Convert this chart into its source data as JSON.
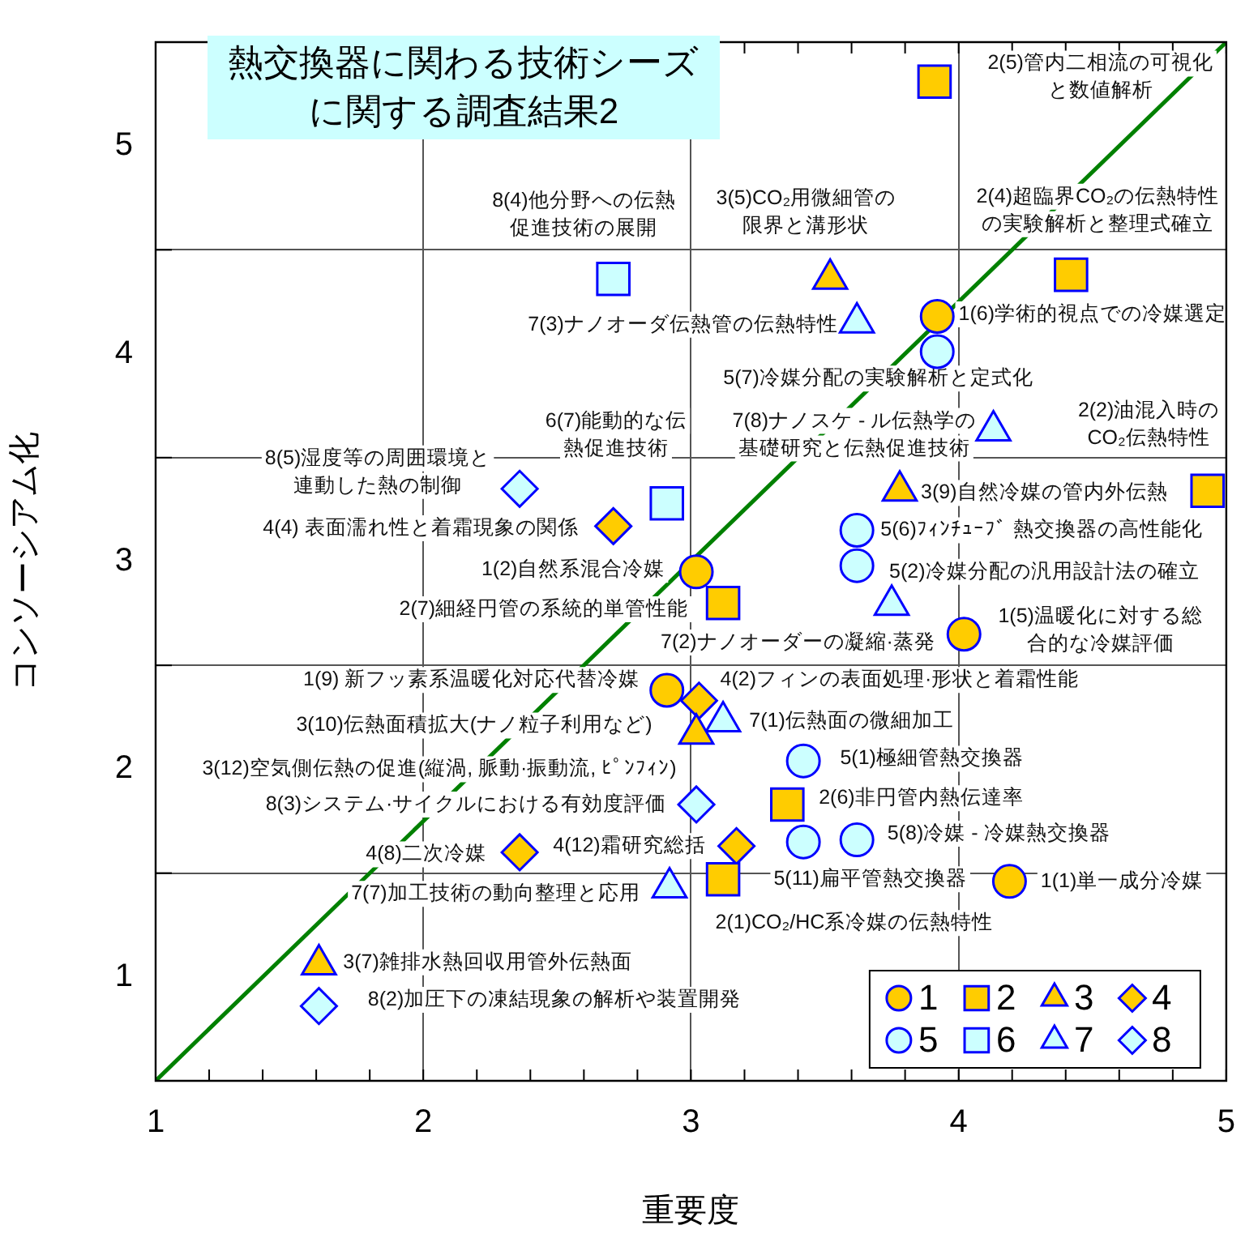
{
  "chart_data": {
    "type": "scatter",
    "title": "熱交換器に関わる技術シーズに関する調査結果2",
    "xlabel": "重要度",
    "ylabel": "コンソーシアム化",
    "xlim": [
      1,
      5
    ],
    "ylim": [
      0.5,
      5.5
    ],
    "xticks": [
      1,
      {
        "value": 1.2,
        "label": null
      },
      {
        "value": 1.4,
        "label": null
      },
      {
        "value": 1.6,
        "label": null
      },
      {
        "value": 1.8,
        "label": null
      },
      2,
      {
        "value": 2.2,
        "label": null
      },
      {
        "value": 2.4,
        "label": null
      },
      {
        "value": 2.6,
        "label": null
      },
      {
        "value": 2.8,
        "label": null
      },
      3,
      {
        "value": 3.2,
        "label": null
      },
      {
        "value": 3.4,
        "label": null
      },
      {
        "value": 3.6,
        "label": null
      },
      {
        "value": 3.8,
        "label": null
      },
      4,
      {
        "value": 4.2,
        "label": null
      },
      {
        "value": 4.4,
        "label": null
      },
      {
        "value": 4.6,
        "label": null
      },
      {
        "value": 4.8,
        "label": null
      },
      5
    ],
    "yticks": [
      1,
      {
        "value": 1.5,
        "label": null
      },
      2,
      {
        "value": 2.5,
        "label": null
      },
      3,
      {
        "value": 3.5,
        "label": null
      },
      4,
      {
        "value": 4.5,
        "label": null
      },
      5
    ],
    "grid": true,
    "legend": "bottom right",
    "series": [
      {
        "type": "line",
        "color": "#008000",
        "x": [
          1,
          5
        ],
        "values": [
          0.5,
          5.5
        ]
      },
      {
        "name": "1",
        "color": "#ffcc00",
        "marker": "circle",
        "x": [
          3.92,
          3.02,
          4.02,
          2.91,
          4.19
        ],
        "values": [
          4.18,
          2.95,
          2.65,
          2.38,
          1.46
        ]
      },
      {
        "name": "2",
        "color": "#ffcc00",
        "marker": "square",
        "x": [
          3.91,
          4.42,
          4.93,
          3.12,
          3.36,
          3.12
        ],
        "values": [
          5.31,
          4.38,
          3.34,
          2.8,
          1.83,
          1.47
        ]
      },
      {
        "name": "3",
        "color": "#ffcc00",
        "marker": "triangle",
        "x": [
          3.52,
          3.78,
          3.02,
          1.61
        ],
        "values": [
          4.36,
          3.34,
          2.17,
          1.06
        ]
      },
      {
        "name": "4",
        "color": "#ffcc00",
        "marker": "diamond",
        "x": [
          2.71,
          3.03,
          3.17,
          2.36
        ],
        "values": [
          3.17,
          2.33,
          1.63,
          1.6
        ]
      },
      {
        "name": "5",
        "color": "#ccffff",
        "marker": "circle",
        "x": [
          3.92,
          3.62,
          3.62,
          3.42,
          3.62,
          3.42
        ],
        "values": [
          4.01,
          3.15,
          2.98,
          2.04,
          1.66,
          1.65
        ]
      },
      {
        "name": "6",
        "color": "#ccffff",
        "marker": "square",
        "x": [
          2.71,
          2.91
        ],
        "values": [
          4.36,
          3.28
        ]
      },
      {
        "name": "7",
        "color": "#ccffff",
        "marker": "triangle",
        "x": [
          3.62,
          4.13,
          3.75,
          3.12,
          2.92
        ],
        "values": [
          4.15,
          3.63,
          2.79,
          2.23,
          1.43
        ]
      },
      {
        "name": "8",
        "color": "#ccffff",
        "marker": "diamond",
        "x": [
          2.36,
          3.02,
          1.61
        ],
        "values": [
          3.35,
          1.83,
          0.86
        ]
      }
    ],
    "annotations": [
      "8(4)他分野への伝熱促進技術の展開",
      "3(5)CO₂用微細管の限界と溝形状",
      "2(5)管内二相流の可視化と数値解析",
      "2(4)超臨界CO₂の伝熱特性の実験解析と整理式確立",
      "7(3)ナノオーダ伝熱管の伝熱特性",
      "1(6)学術的視点での冷媒選定",
      "5(7)冷媒分配の実験解析と定式化",
      "7(8)ナノスケ - ル伝熱学の基礎研究と伝熱促進技術",
      "6(7)能動的な伝熱促進技術",
      "2(2)油混入時のCO₂伝熱特性",
      "8(5)湿度等の周囲環境と連動した熱の制御",
      "3(9)自然冷媒の管内外伝熱",
      "4(4) 表面濡れ性と着霜現象の関係",
      "5(6)ﾌｨﾝﾁｭｰﾌﾞ 熱交換器の高性能化",
      "1(2)自然系混合冷媒",
      "5(2)冷媒分配の汎用設計法の確立",
      "2(7)細経円管の系統的単管性能",
      "7(2)ナノオーダーの凝縮·蒸発",
      "1(5)温暖化に対する総合的な冷媒評価",
      "1(9) 新フッ素系温暖化対応代替冷媒",
      "4(2)フィンの表面処理·形状と着霜性能",
      "3(10)伝熱面積拡大(ナノ粒子利用など)",
      "7(1)伝熱面の微細加工",
      "5(1)極細管熱交換器",
      "3(12)空気側伝熱の促進(縦渦, 脈動·振動流, ﾋﾟﾝﾌｨﾝ)",
      "2(6)非円管内熱伝達率",
      "8(3)システム·サイクルにおける有効度評価",
      "5(8)冷媒 - 冷媒熱交換器",
      "4(8)二次冷媒",
      "4(12)霜研究総括",
      "5(11)扁平管熱交換器",
      "1(1)単一成分冷媒",
      "7(7)加工技術の動向整理と応用",
      "2(1)CO₂/HC系冷媒の伝熱特性",
      "3(7)雑排水熱回収用管外伝熱面",
      "8(2)加圧下の凍結現象の解析や装置開発"
    ]
  }
}
